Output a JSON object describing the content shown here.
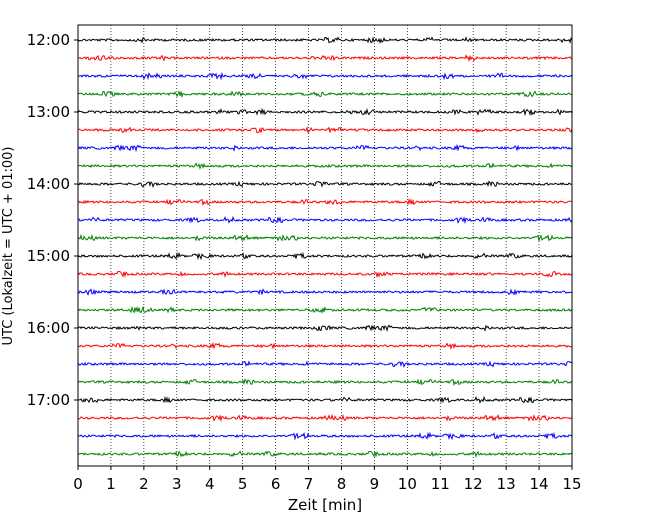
{
  "chart_data": {
    "type": "line",
    "title": "",
    "xlabel": "Zeit  [min]",
    "ylabel": "UTC (Lokalzeit = UTC + 01:00)",
    "xlim": [
      0,
      15
    ],
    "x_ticks": [
      0,
      1,
      2,
      3,
      4,
      5,
      6,
      7,
      8,
      9,
      10,
      11,
      12,
      13,
      14,
      15
    ],
    "y_ticks": [
      "12:00",
      "13:00",
      "14:00",
      "15:00",
      "16:00",
      "17:00"
    ],
    "grid": "vertical dotted",
    "trace_colors": [
      "#000000",
      "#ff0000",
      "#0000ff",
      "#008000"
    ],
    "traces_per_hour": 4,
    "trace_start_times": [
      "12:00",
      "12:15",
      "12:30",
      "12:45",
      "13:00",
      "13:15",
      "13:30",
      "13:45",
      "14:00",
      "14:15",
      "14:30",
      "14:45",
      "15:00",
      "15:15",
      "15:30",
      "15:45",
      "16:00",
      "16:15",
      "16:30",
      "16:45",
      "17:00",
      "17:15",
      "17:30",
      "17:45"
    ]
  }
}
